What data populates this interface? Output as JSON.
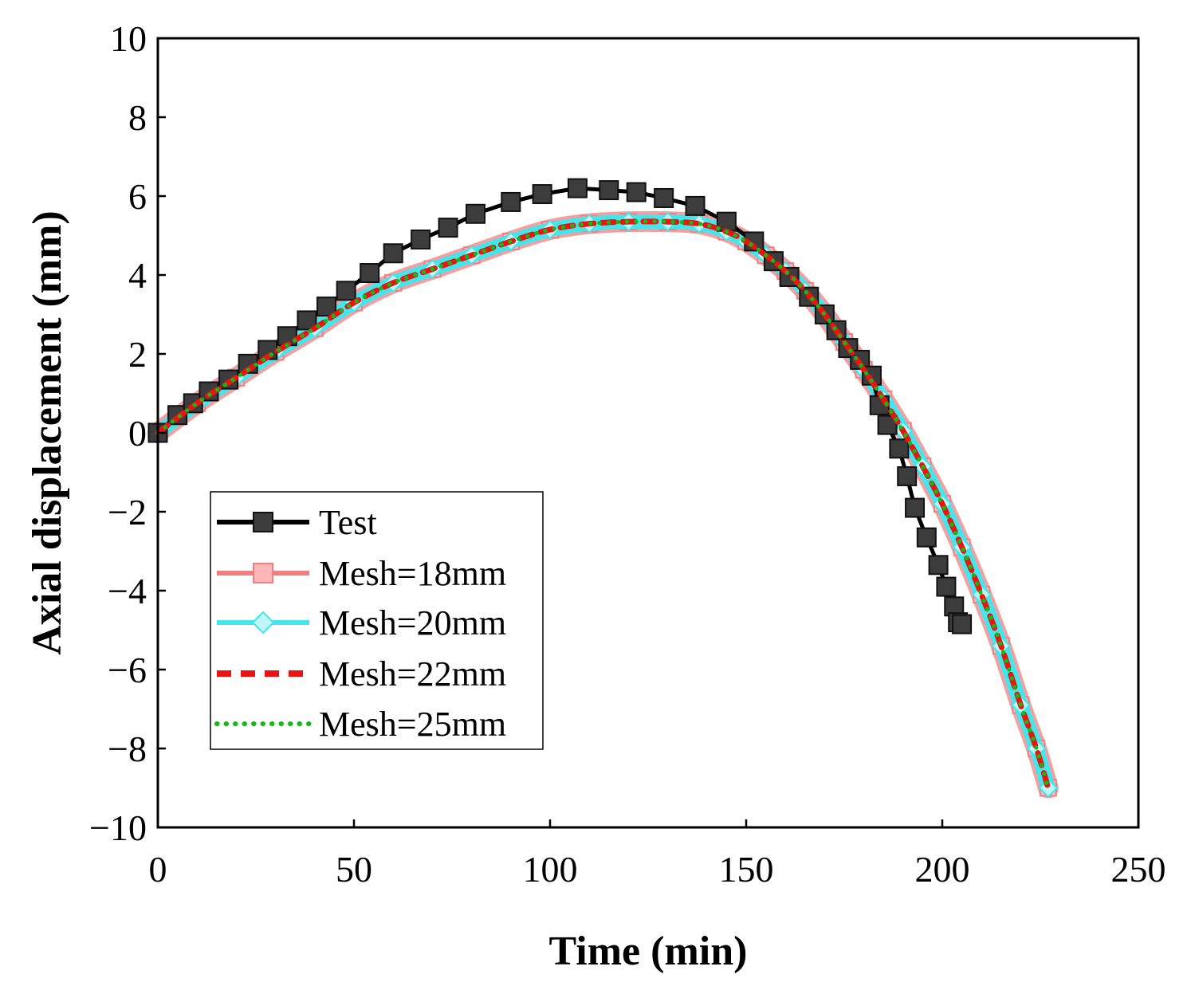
{
  "chart_data": {
    "type": "line",
    "title": "",
    "xlabel": "Time (min)",
    "ylabel": "Axial displacement (mm)",
    "xlim": [
      0,
      250
    ],
    "ylim": [
      -10,
      10
    ],
    "xticks": [
      0,
      50,
      100,
      150,
      200,
      250
    ],
    "yticks": [
      -10,
      -8,
      -6,
      -4,
      -2,
      0,
      2,
      4,
      6,
      8,
      10
    ],
    "ytick_labels": [
      "−10",
      "−8",
      "−6",
      "−4",
      "−2",
      "0",
      "2",
      "4",
      "6",
      "8",
      "10"
    ],
    "grid": false,
    "legend_position": "lower-left",
    "series": [
      {
        "name": "Test",
        "color": "#000000",
        "marker_fill": "#3c3c3c",
        "style": "solid-square",
        "x": [
          0,
          5,
          9,
          13,
          18,
          23,
          28,
          33,
          38,
          43,
          48,
          54,
          60,
          67,
          74,
          81,
          90,
          98,
          107,
          115,
          122,
          129,
          137,
          145,
          152,
          157,
          161,
          166,
          170,
          173,
          176,
          179,
          182,
          184,
          186,
          189,
          191,
          193,
          196,
          199,
          201,
          203,
          204,
          205
        ],
        "y": [
          0,
          0.45,
          0.75,
          1.05,
          1.35,
          1.75,
          2.1,
          2.45,
          2.85,
          3.2,
          3.6,
          4.05,
          4.55,
          4.9,
          5.2,
          5.55,
          5.85,
          6.05,
          6.2,
          6.15,
          6.1,
          5.95,
          5.75,
          5.35,
          4.85,
          4.35,
          3.95,
          3.45,
          3.0,
          2.6,
          2.15,
          1.85,
          1.45,
          0.7,
          0.2,
          -0.4,
          -1.1,
          -1.9,
          -2.65,
          -3.35,
          -3.9,
          -4.4,
          -4.8,
          -4.85
        ]
      },
      {
        "name": "Mesh=18mm",
        "color": "#f08080",
        "marker_fill": "#ffb6b6",
        "style": "solid-square-open",
        "x": [
          0,
          10,
          20,
          30,
          40,
          50,
          60,
          70,
          80,
          90,
          100,
          110,
          120,
          130,
          138,
          145,
          150,
          155,
          160,
          165,
          170,
          175,
          180,
          185,
          190,
          195,
          200,
          205,
          210,
          215,
          220,
          224,
          227
        ],
        "y": [
          0,
          0.75,
          1.4,
          2.05,
          2.65,
          3.3,
          3.8,
          4.15,
          4.5,
          4.85,
          5.15,
          5.3,
          5.35,
          5.35,
          5.3,
          5.1,
          4.85,
          4.5,
          4.1,
          3.6,
          3.0,
          2.3,
          1.6,
          0.85,
          0.05,
          -0.85,
          -1.8,
          -2.9,
          -4.1,
          -5.4,
          -6.9,
          -8.0,
          -9.0
        ]
      },
      {
        "name": "Mesh=20mm",
        "color": "#44e6ee",
        "marker_fill": "#bff6f6",
        "style": "solid-diamond",
        "x": [
          0,
          10,
          20,
          30,
          40,
          50,
          60,
          70,
          80,
          90,
          100,
          110,
          120,
          130,
          138,
          145,
          150,
          155,
          160,
          165,
          170,
          175,
          180,
          185,
          190,
          195,
          200,
          205,
          210,
          215,
          220,
          224,
          227
        ],
        "y": [
          0,
          0.75,
          1.4,
          2.05,
          2.65,
          3.3,
          3.8,
          4.15,
          4.5,
          4.85,
          5.15,
          5.3,
          5.35,
          5.35,
          5.3,
          5.1,
          4.85,
          4.5,
          4.1,
          3.6,
          3.0,
          2.3,
          1.6,
          0.85,
          0.05,
          -0.85,
          -1.8,
          -2.9,
          -4.1,
          -5.4,
          -6.9,
          -8.0,
          -9.0
        ]
      },
      {
        "name": "Mesh=22mm",
        "color": "#ee1111",
        "style": "dashed",
        "x": [
          0,
          10,
          20,
          30,
          40,
          50,
          60,
          70,
          80,
          90,
          100,
          110,
          120,
          130,
          138,
          145,
          150,
          155,
          160,
          165,
          170,
          175,
          180,
          185,
          190,
          195,
          200,
          205,
          210,
          215,
          220,
          224,
          227
        ],
        "y": [
          0,
          0.75,
          1.4,
          2.05,
          2.65,
          3.3,
          3.8,
          4.15,
          4.5,
          4.85,
          5.15,
          5.3,
          5.35,
          5.35,
          5.3,
          5.1,
          4.85,
          4.5,
          4.1,
          3.6,
          3.0,
          2.3,
          1.6,
          0.85,
          0.05,
          -0.85,
          -1.8,
          -2.9,
          -4.1,
          -5.4,
          -6.9,
          -8.0,
          -9.0
        ]
      },
      {
        "name": "Mesh=25mm",
        "color": "#11bb11",
        "style": "dotted",
        "x": [
          0,
          10,
          20,
          30,
          40,
          50,
          60,
          70,
          80,
          90,
          100,
          110,
          120,
          130,
          138,
          145,
          150,
          155,
          160,
          165,
          170,
          175,
          180,
          185,
          190,
          195,
          200,
          205,
          210,
          215,
          220,
          224,
          227
        ],
        "y": [
          0,
          0.75,
          1.4,
          2.05,
          2.65,
          3.3,
          3.8,
          4.15,
          4.5,
          4.85,
          5.15,
          5.3,
          5.35,
          5.35,
          5.3,
          5.1,
          4.85,
          4.5,
          4.1,
          3.6,
          3.0,
          2.3,
          1.6,
          0.85,
          0.05,
          -0.85,
          -1.8,
          -2.9,
          -4.1,
          -5.4,
          -6.9,
          -8.0,
          -9.0
        ]
      }
    ]
  }
}
